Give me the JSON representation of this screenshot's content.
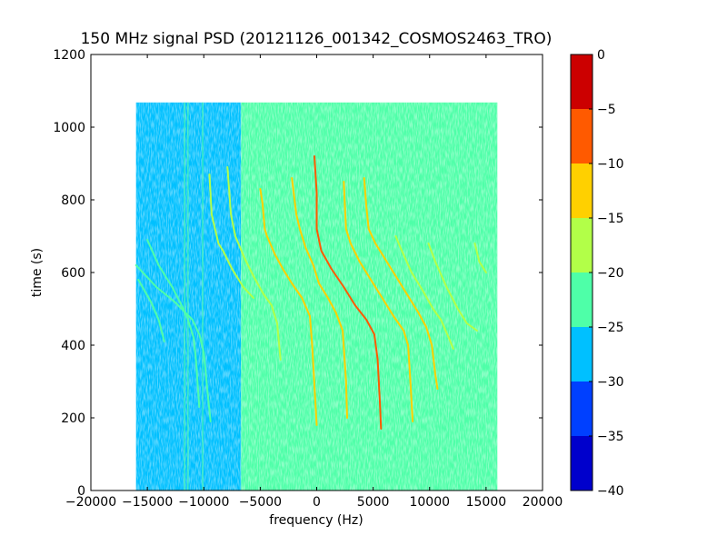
{
  "chart_data": {
    "type": "heatmap",
    "title": "150 MHz signal PSD (20121126_001342_COSMOS2463_TRO)",
    "xlabel": "frequency (Hz)",
    "ylabel": "time (s)",
    "xlim": [
      -20000,
      20000
    ],
    "ylim": [
      0,
      1200
    ],
    "xticks": [
      -20000,
      -15000,
      -10000,
      -5000,
      0,
      5000,
      10000,
      15000,
      20000
    ],
    "xtick_labels": [
      "−20000",
      "−15000",
      "−10000",
      "−5000",
      "0",
      "5000",
      "10000",
      "15000",
      "20000"
    ],
    "yticks": [
      0,
      200,
      400,
      600,
      800,
      1000,
      1200
    ],
    "ytick_labels": [
      "0",
      "200",
      "400",
      "600",
      "800",
      "1000",
      "1200"
    ],
    "data_extent": {
      "x": [
        -16000,
        16000
      ],
      "y": [
        0,
        1068
      ]
    },
    "background_regions": [
      {
        "x_from": -16000,
        "x_to": -6700,
        "level": -27.5
      },
      {
        "x_from": -6700,
        "x_to": 16000,
        "level": -22.5
      }
    ],
    "vertical_lines": [
      {
        "x": -11700,
        "level": -22.5
      },
      {
        "x": -11400,
        "level": -22.5
      },
      {
        "x": -10100,
        "level": -22.5
      }
    ],
    "traces": [
      {
        "points": [
          [
            -16000,
            620
          ],
          [
            -14200,
            560
          ],
          [
            -12600,
            520
          ],
          [
            -11000,
            470
          ],
          [
            -10400,
            430
          ],
          [
            -10000,
            380
          ],
          [
            -9600,
            250
          ],
          [
            -9400,
            190
          ]
        ],
        "level": -22.5
      },
      {
        "points": [
          [
            -15000,
            690
          ],
          [
            -14000,
            620
          ],
          [
            -12800,
            560
          ],
          [
            -12300,
            530
          ],
          [
            -11500,
            480
          ],
          [
            -10900,
            420
          ],
          [
            -10700,
            360
          ],
          [
            -10400,
            230
          ]
        ],
        "level": -22.5
      },
      {
        "points": [
          [
            -15800,
            580
          ],
          [
            -14700,
            520
          ],
          [
            -14000,
            470
          ],
          [
            -13500,
            410
          ]
        ],
        "level": -22.5
      },
      {
        "points": [
          [
            -9500,
            870
          ],
          [
            -9300,
            760
          ],
          [
            -8700,
            680
          ],
          [
            -8300,
            660
          ],
          [
            -7500,
            610
          ],
          [
            -6500,
            560
          ],
          [
            -5600,
            530
          ]
        ],
        "level": -17.5
      },
      {
        "points": [
          [
            -7900,
            890
          ],
          [
            -7600,
            760
          ],
          [
            -7200,
            700
          ],
          [
            -6400,
            640
          ],
          [
            -5600,
            590
          ],
          [
            -4700,
            540
          ],
          [
            -4000,
            510
          ],
          [
            -3500,
            460
          ],
          [
            -3200,
            360
          ]
        ],
        "level": -17.5
      },
      {
        "points": [
          [
            -5000,
            830
          ],
          [
            -4800,
            790
          ],
          [
            -4600,
            720
          ],
          [
            -4400,
            700
          ],
          [
            -3700,
            650
          ],
          [
            -3000,
            610
          ],
          [
            -2200,
            570
          ],
          [
            -1300,
            530
          ],
          [
            -600,
            480
          ],
          [
            -400,
            400
          ],
          [
            -200,
            290
          ],
          [
            0,
            180
          ]
        ],
        "level": -12.5
      },
      {
        "points": [
          [
            -2200,
            860
          ],
          [
            -1800,
            760
          ],
          [
            -1500,
            720
          ],
          [
            -1000,
            670
          ],
          [
            -300,
            620
          ],
          [
            200,
            570
          ],
          [
            1000,
            530
          ],
          [
            1700,
            490
          ],
          [
            2300,
            440
          ],
          [
            2600,
            300
          ],
          [
            2700,
            200
          ]
        ],
        "level": -12.5
      },
      {
        "points": [
          [
            -200,
            920
          ],
          [
            0,
            820
          ],
          [
            0,
            720
          ],
          [
            400,
            660
          ],
          [
            1300,
            610
          ],
          [
            2400,
            560
          ],
          [
            3400,
            510
          ],
          [
            4400,
            470
          ],
          [
            5100,
            430
          ],
          [
            5400,
            360
          ],
          [
            5600,
            240
          ],
          [
            5700,
            170
          ]
        ],
        "level": -7.5
      },
      {
        "points": [
          [
            2400,
            850
          ],
          [
            2500,
            780
          ],
          [
            2600,
            720
          ],
          [
            3000,
            680
          ],
          [
            3800,
            630
          ],
          [
            4800,
            580
          ],
          [
            5800,
            530
          ],
          [
            6800,
            480
          ],
          [
            7700,
            440
          ],
          [
            8100,
            400
          ],
          [
            8300,
            300
          ],
          [
            8500,
            190
          ]
        ],
        "level": -12.5
      },
      {
        "points": [
          [
            4200,
            860
          ],
          [
            4400,
            780
          ],
          [
            4600,
            720
          ],
          [
            5200,
            680
          ],
          [
            6000,
            640
          ],
          [
            7000,
            590
          ],
          [
            8000,
            540
          ],
          [
            9000,
            490
          ],
          [
            9700,
            450
          ],
          [
            10200,
            400
          ],
          [
            10500,
            320
          ],
          [
            10700,
            280
          ]
        ],
        "level": -12.5
      },
      {
        "points": [
          [
            7000,
            700
          ],
          [
            7400,
            670
          ],
          [
            8400,
            600
          ],
          [
            9400,
            550
          ],
          [
            10300,
            500
          ],
          [
            11000,
            470
          ],
          [
            11700,
            420
          ],
          [
            12100,
            390
          ]
        ],
        "level": -17.5
      },
      {
        "points": [
          [
            9900,
            680
          ],
          [
            10500,
            630
          ],
          [
            11500,
            560
          ],
          [
            12500,
            500
          ],
          [
            13300,
            460
          ],
          [
            14200,
            440
          ]
        ],
        "level": -17.5
      },
      {
        "points": [
          [
            14000,
            680
          ],
          [
            14400,
            630
          ],
          [
            15000,
            600
          ]
        ],
        "level": -17.5
      }
    ],
    "colorbar": {
      "min": -40,
      "max": 0,
      "ticks": [
        0,
        -5,
        -10,
        -15,
        -20,
        -25,
        -30,
        -35,
        -40
      ],
      "tick_labels": [
        "0",
        "−5",
        "−10",
        "−15",
        "−20",
        "−25",
        "−30",
        "−35",
        "−40"
      ],
      "levels": [
        {
          "from": -40,
          "to": -35,
          "color": "#0000cc"
        },
        {
          "from": -35,
          "to": -30,
          "color": "#0040ff"
        },
        {
          "from": -30,
          "to": -25,
          "color": "#00c0ff"
        },
        {
          "from": -25,
          "to": -20,
          "color": "#4effa8"
        },
        {
          "from": -20,
          "to": -15,
          "color": "#b2ff48"
        },
        {
          "from": -15,
          "to": -10,
          "color": "#ffd000"
        },
        {
          "from": -10,
          "to": -5,
          "color": "#ff5a00"
        },
        {
          "from": -5,
          "to": 0,
          "color": "#cc0000"
        }
      ]
    }
  }
}
